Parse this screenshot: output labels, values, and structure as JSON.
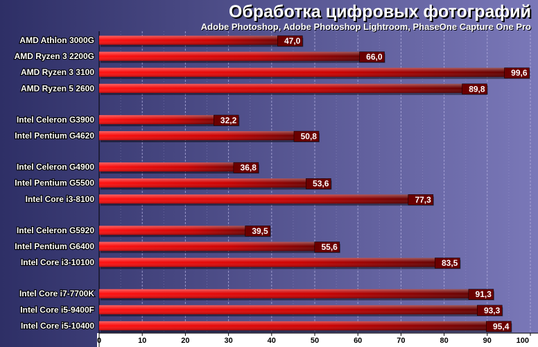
{
  "chart_data": {
    "type": "bar",
    "orientation": "horizontal",
    "title": "Обработка цифровых фотографий",
    "subtitle": "Adobe Photoshop, Adobe Photoshop Lightroom, PhaseOne Capture One Pro",
    "xlim": [
      0,
      100
    ],
    "x_ticks": [
      "0",
      "10",
      "20",
      "30",
      "40",
      "50",
      "60",
      "70",
      "80",
      "90",
      "100"
    ],
    "grid": true,
    "groups": [
      {
        "categories": [
          "AMD Athlon 3000G",
          "AMD Ryzen 3 2200G",
          "AMD Ryzen 3 3100",
          "AMD Ryzen 5 2600"
        ],
        "values": [
          47.0,
          66.0,
          99.6,
          89.8
        ],
        "labels": [
          "47,0",
          "66,0",
          "99,6",
          "89,8"
        ]
      },
      {
        "categories": [
          "Intel Celeron G3900",
          "Intel Pentium G4620"
        ],
        "values": [
          32.2,
          50.8
        ],
        "labels": [
          "32,2",
          "50,8"
        ]
      },
      {
        "categories": [
          "Intel Celeron G4900",
          "Intel Pentium G5500",
          "Intel Core i3-8100"
        ],
        "values": [
          36.8,
          53.6,
          77.3
        ],
        "labels": [
          "36,8",
          "53,6",
          "77,3"
        ]
      },
      {
        "categories": [
          "Intel Celeron G5920",
          "Intel Pentium G6400",
          "Intel Core i3-10100"
        ],
        "values": [
          39.5,
          55.6,
          83.5
        ],
        "labels": [
          "39,5",
          "55,6",
          "83,5"
        ]
      },
      {
        "categories": [
          "Intel Core i7-7700K",
          "Intel Core i5-9400F",
          "Intel Core i5-10400"
        ],
        "values": [
          91.3,
          93.3,
          95.4
        ],
        "labels": [
          "91,3",
          "93,3",
          "95,4"
        ]
      }
    ],
    "colors": {
      "background_dark": "#2e2f66",
      "background_light": "#7a78b8",
      "bar_start": "#ff1010",
      "bar_end": "#550000",
      "label_bg": "#6a0000",
      "grid": "#b0acdc",
      "text": "#ffffff"
    }
  }
}
